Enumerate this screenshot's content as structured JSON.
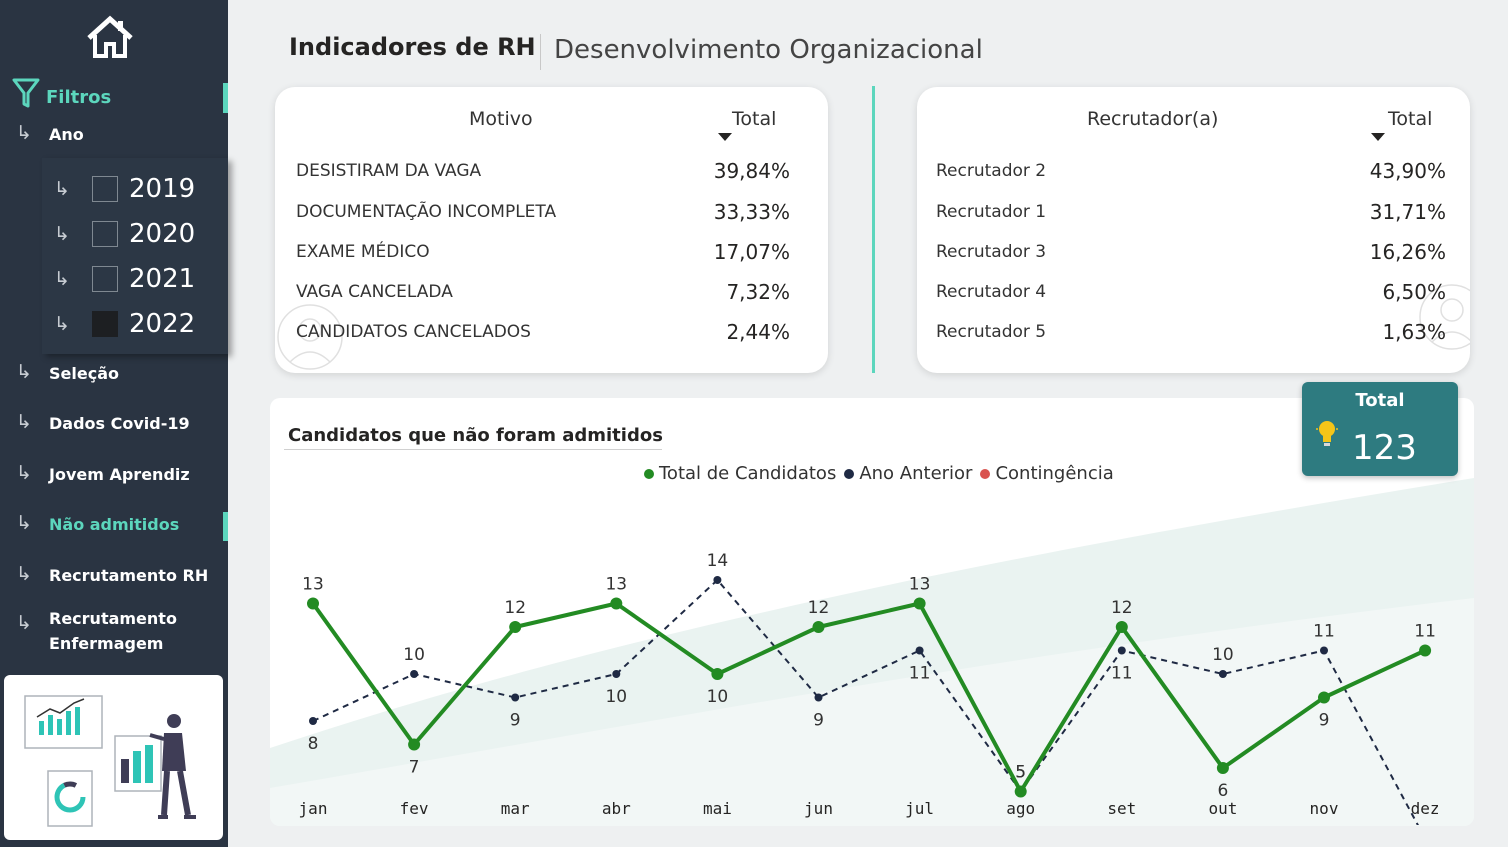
{
  "header": {
    "title": "Indicadores de RH",
    "subtitle": "Desenvolvimento Organizacional"
  },
  "sidebar": {
    "filters_label": "Filtros",
    "year_label": "Ano",
    "years": [
      {
        "label": "2019",
        "checked": false
      },
      {
        "label": "2020",
        "checked": false
      },
      {
        "label": "2021",
        "checked": false
      },
      {
        "label": "2022",
        "checked": true
      }
    ],
    "nav": [
      {
        "label": "Seleção",
        "active": false
      },
      {
        "label": "Dados Covid-19",
        "active": false
      },
      {
        "label": "Jovem Aprendiz",
        "active": false
      },
      {
        "label": "Não admitidos",
        "active": true
      },
      {
        "label": "Recrutamento RH",
        "active": false
      },
      {
        "label": "Recrutamento Enfermagem",
        "active": false
      }
    ]
  },
  "reasons_table": {
    "col_name": "Motivo",
    "col_total": "Total",
    "rows": [
      {
        "name": "DESISTIRAM DA VAGA",
        "total": "39,84%"
      },
      {
        "name": "DOCUMENTAÇÃO INCOMPLETA",
        "total": "33,33%"
      },
      {
        "name": "EXAME MÉDICO",
        "total": "17,07%"
      },
      {
        "name": "VAGA CANCELADA",
        "total": "7,32%"
      },
      {
        "name": "CANDIDATOS CANCELADOS",
        "total": "2,44%"
      }
    ]
  },
  "recruiters_table": {
    "col_name": "Recrutador(a)",
    "col_total": "Total",
    "rows": [
      {
        "name": "Recrutador 2",
        "total": "43,90%"
      },
      {
        "name": "Recrutador 1",
        "total": "31,71%"
      },
      {
        "name": "Recrutador 3",
        "total": "16,26%"
      },
      {
        "name": "Recrutador 4",
        "total": "6,50%"
      },
      {
        "name": "Recrutador 5",
        "total": "1,63%"
      }
    ]
  },
  "kpi": {
    "label": "Total",
    "value": "123"
  },
  "colors": {
    "accent": "#5cd6bd",
    "sidebar": "#2a3442",
    "series_total": "#238b23",
    "series_prev": "#1f2a44",
    "series_cont": "#d9534f",
    "kpi": "#2e7b80"
  },
  "chart_data": {
    "type": "line",
    "title": "Candidatos que não foram admitidos",
    "categories": [
      "jan",
      "fev",
      "mar",
      "abr",
      "mai",
      "jun",
      "jul",
      "ago",
      "set",
      "out",
      "nov",
      "dez"
    ],
    "legend": [
      "Total de Candidatos",
      "Ano Anterior",
      "Contingência"
    ],
    "series": [
      {
        "name": "Total de Candidatos",
        "values": [
          13,
          7,
          12,
          13,
          10,
          12,
          13,
          5,
          12,
          6,
          9,
          11
        ]
      },
      {
        "name": "Ano Anterior",
        "values": [
          8,
          10,
          9,
          10,
          14,
          9,
          11,
          5,
          11,
          10,
          11,
          3
        ]
      }
    ],
    "legend_position": "top-center",
    "grid": false
  }
}
